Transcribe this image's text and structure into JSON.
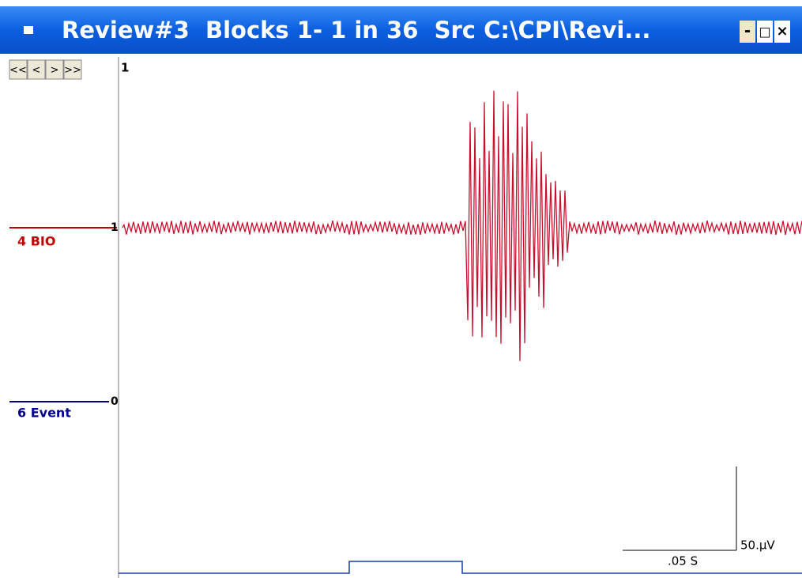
{
  "window": {
    "title": "Review#3  Blocks 1- 1 in 36  Src C:\\CPI\\Revi...",
    "controls": [
      "-",
      "□",
      "×"
    ]
  },
  "nav": [
    "<<",
    "<",
    ">",
    ">>"
  ],
  "axis_top": "1",
  "channels": [
    {
      "label": "4 BIO",
      "marker": "1"
    },
    {
      "label": "6 Event",
      "marker": "0"
    }
  ],
  "scale": {
    "amplitude": "50.µV",
    "time": ".05 S"
  }
}
